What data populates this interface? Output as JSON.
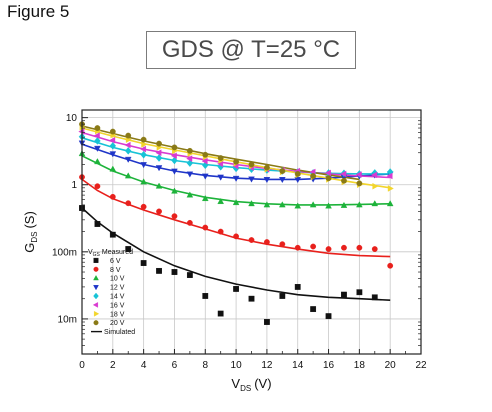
{
  "figure_label": "Figure 5",
  "chart_data": {
    "type": "scatter",
    "title": "GDS @ T=25 °C",
    "xlabel": "V",
    "xlabel_sub": "DS",
    "xlabel_unit": "(V)",
    "ylabel": "G",
    "ylabel_sub": "DS",
    "ylabel_unit": "(S)",
    "xlim": [
      0,
      22
    ],
    "ylim": [
      0.003,
      13
    ],
    "y_scale": "log",
    "x_ticks": [
      0,
      2,
      4,
      6,
      8,
      10,
      12,
      14,
      16,
      18,
      20,
      22
    ],
    "x_tick_labels": [
      "0",
      "2",
      "4",
      "6",
      "8",
      "10",
      "12",
      "14",
      "16",
      "18",
      "20",
      "22"
    ],
    "y_ticks": [
      10,
      1,
      0.1,
      0.01
    ],
    "y_tick_labels": [
      "10",
      "1",
      "100m",
      "10m"
    ],
    "grid": true,
    "legend": {
      "placement": "bottom-left",
      "header_symbol": "V",
      "header_sub": "GS",
      "header_text": "Measured",
      "simulated_label": "Simulated"
    },
    "x": [
      0,
      1,
      2,
      3,
      4,
      5,
      6,
      7,
      8,
      9,
      10,
      11,
      12,
      13,
      14,
      15,
      16,
      17,
      18,
      19,
      20
    ],
    "series": [
      {
        "name": "6 V",
        "color": "#111111",
        "marker": "square",
        "values": [
          0.45,
          0.26,
          0.18,
          0.11,
          0.068,
          0.052,
          0.05,
          0.045,
          0.022,
          0.012,
          0.028,
          0.02,
          0.009,
          0.022,
          0.03,
          0.014,
          0.011,
          0.023,
          0.025,
          0.021,
          null
        ],
        "sim": [
          [
            0,
            0.45
          ],
          [
            1,
            0.28
          ],
          [
            2,
            0.19
          ],
          [
            4,
            0.1
          ],
          [
            6,
            0.062
          ],
          [
            8,
            0.043
          ],
          [
            10,
            0.033
          ],
          [
            12,
            0.027
          ],
          [
            14,
            0.023
          ],
          [
            16,
            0.021
          ],
          [
            18,
            0.02
          ],
          [
            20,
            0.019
          ]
        ]
      },
      {
        "name": "8 V",
        "color": "#e8201c",
        "marker": "circle",
        "values": [
          1.3,
          0.95,
          0.66,
          0.53,
          0.47,
          0.4,
          0.34,
          0.27,
          0.23,
          0.2,
          0.17,
          0.15,
          0.14,
          0.13,
          0.115,
          0.12,
          0.11,
          0.115,
          0.115,
          0.11,
          0.062
        ],
        "sim": [
          [
            0,
            1.2
          ],
          [
            1,
            0.82
          ],
          [
            2,
            0.62
          ],
          [
            4,
            0.42
          ],
          [
            6,
            0.3
          ],
          [
            8,
            0.22
          ],
          [
            10,
            0.16
          ],
          [
            12,
            0.13
          ],
          [
            14,
            0.11
          ],
          [
            16,
            0.095
          ],
          [
            18,
            0.088
          ],
          [
            20,
            0.085
          ]
        ]
      },
      {
        "name": "10 V",
        "color": "#1db33a",
        "marker": "triangle-up",
        "values": [
          2.9,
          2.2,
          1.7,
          1.35,
          1.1,
          0.95,
          0.8,
          0.7,
          0.62,
          0.56,
          0.54,
          0.52,
          0.5,
          0.5,
          0.48,
          0.5,
          0.48,
          0.49,
          0.5,
          0.52,
          0.52
        ],
        "sim": [
          [
            0,
            2.7
          ],
          [
            2,
            1.6
          ],
          [
            4,
            1.1
          ],
          [
            6,
            0.82
          ],
          [
            8,
            0.65
          ],
          [
            10,
            0.56
          ],
          [
            12,
            0.52
          ],
          [
            14,
            0.5
          ],
          [
            16,
            0.5
          ],
          [
            18,
            0.51
          ],
          [
            20,
            0.52
          ]
        ]
      },
      {
        "name": "12 V",
        "color": "#1f35c8",
        "marker": "triangle-down",
        "values": [
          4.2,
          3.5,
          2.9,
          2.4,
          2.0,
          1.8,
          1.6,
          1.45,
          1.35,
          1.3,
          1.25,
          1.22,
          1.2,
          1.2,
          1.2,
          1.22,
          1.25,
          1.3,
          1.35,
          1.4,
          1.45
        ],
        "sim": [
          [
            0,
            4.0
          ],
          [
            2,
            2.8
          ],
          [
            4,
            2.0
          ],
          [
            6,
            1.6
          ],
          [
            8,
            1.38
          ],
          [
            10,
            1.25
          ],
          [
            12,
            1.2
          ],
          [
            14,
            1.2
          ],
          [
            16,
            1.25
          ],
          [
            18,
            1.35
          ],
          [
            20,
            1.45
          ]
        ]
      },
      {
        "name": "14 V",
        "color": "#17c3d6",
        "marker": "diamond",
        "values": [
          5.2,
          4.5,
          3.8,
          3.2,
          2.8,
          2.5,
          2.3,
          2.1,
          1.95,
          1.85,
          1.75,
          1.7,
          1.65,
          1.6,
          1.55,
          1.5,
          1.5,
          1.48,
          1.45,
          1.5,
          1.55
        ],
        "sim": [
          [
            0,
            5.0
          ],
          [
            2,
            3.6
          ],
          [
            4,
            2.8
          ],
          [
            6,
            2.3
          ],
          [
            8,
            2.0
          ],
          [
            10,
            1.8
          ],
          [
            12,
            1.65
          ],
          [
            14,
            1.55
          ],
          [
            16,
            1.48
          ],
          [
            18,
            1.45
          ],
          [
            20,
            1.45
          ]
        ]
      },
      {
        "name": "16 V",
        "color": "#d93bd1",
        "marker": "triangle-left",
        "values": [
          6.2,
          5.4,
          4.6,
          3.9,
          3.4,
          3.0,
          2.7,
          2.45,
          2.25,
          2.05,
          1.9,
          1.8,
          1.7,
          1.65,
          1.6,
          1.55,
          1.5,
          1.45,
          1.42,
          1.4,
          1.35
        ],
        "sim": [
          [
            0,
            6.0
          ],
          [
            2,
            4.4
          ],
          [
            4,
            3.4
          ],
          [
            6,
            2.8
          ],
          [
            8,
            2.35
          ],
          [
            10,
            2.0
          ],
          [
            12,
            1.75
          ],
          [
            14,
            1.58
          ],
          [
            16,
            1.45
          ],
          [
            18,
            1.35
          ],
          [
            20,
            1.28
          ]
        ]
      },
      {
        "name": "18 V",
        "color": "#f2d52c",
        "marker": "triangle-right",
        "values": [
          7.2,
          6.3,
          5.5,
          4.7,
          4.0,
          3.6,
          3.2,
          2.9,
          2.6,
          2.3,
          2.1,
          1.9,
          1.7,
          1.55,
          1.4,
          1.3,
          1.2,
          1.1,
          1.0,
          0.95,
          0.88
        ],
        "sim": [
          [
            0,
            7.0
          ],
          [
            2,
            5.3
          ],
          [
            4,
            4.1
          ],
          [
            6,
            3.3
          ],
          [
            8,
            2.7
          ],
          [
            10,
            2.2
          ],
          [
            12,
            1.8
          ],
          [
            14,
            1.5
          ],
          [
            16,
            1.25
          ],
          [
            18,
            1.05
          ],
          [
            20,
            0.9
          ]
        ]
      },
      {
        "name": "20 V",
        "color": "#8a7a16",
        "marker": "circle",
        "values": [
          8.0,
          7.0,
          6.2,
          5.4,
          4.7,
          4.1,
          3.6,
          3.2,
          2.8,
          2.5,
          2.2,
          2.0,
          1.8,
          1.6,
          1.45,
          1.35,
          1.25,
          1.15,
          1.05,
          null,
          null
        ],
        "sim": [
          [
            0,
            7.5
          ],
          [
            2,
            5.8
          ],
          [
            4,
            4.5
          ],
          [
            6,
            3.6
          ],
          [
            8,
            2.9
          ],
          [
            10,
            2.4
          ],
          [
            12,
            2.0
          ],
          [
            14,
            1.65
          ],
          [
            16,
            1.4
          ],
          [
            18,
            1.2
          ]
        ]
      }
    ]
  }
}
